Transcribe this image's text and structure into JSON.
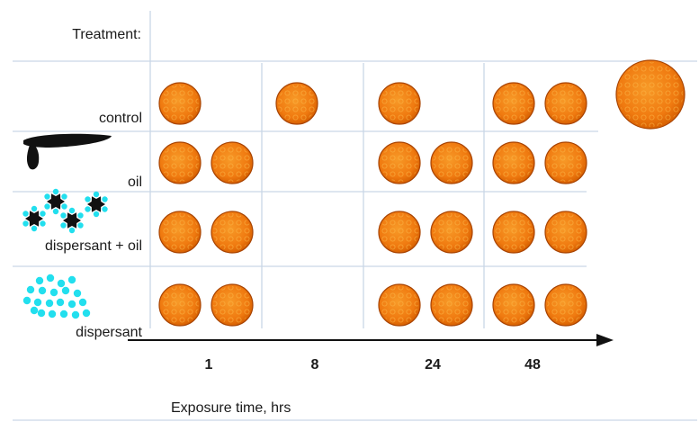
{
  "header": {
    "treatment_label": "Treatment:"
  },
  "rows": [
    {
      "label": "control",
      "icon": "control-none",
      "embryo_counts": [
        1,
        1,
        1,
        2
      ]
    },
    {
      "label": "oil",
      "icon": "oil-drop-icon",
      "embryo_counts": [
        2,
        0,
        2,
        2
      ]
    },
    {
      "label": "dispersant + oil",
      "icon": "dispersant-oil-icon",
      "embryo_counts": [
        2,
        0,
        2,
        2
      ]
    },
    {
      "label": "dispersant",
      "icon": "dispersant-icon",
      "embryo_counts": [
        2,
        0,
        2,
        2
      ]
    }
  ],
  "time_points": [
    "1",
    "8",
    "24",
    "48"
  ],
  "axis_label": "Exposure time, hrs",
  "colors": {
    "embryo_fill": "#f07a10",
    "embryo_edge": "#a84300",
    "embryo_texture": "#f9b040",
    "grid_line": "#c9d7e6",
    "oil": "#111111",
    "dispersant": "#22dfee",
    "arrow": "#111111"
  }
}
